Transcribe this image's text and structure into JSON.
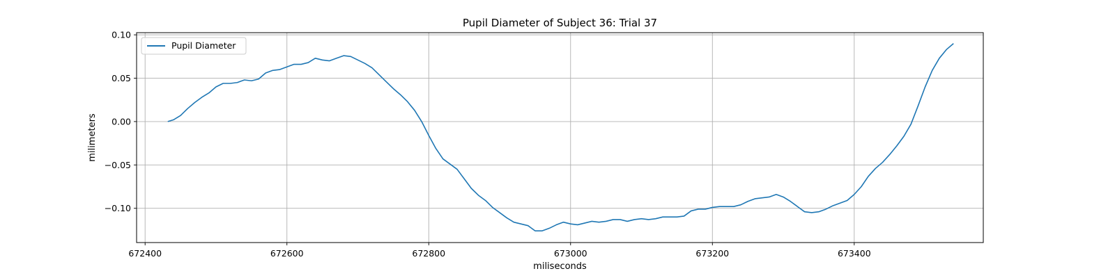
{
  "chart_data": {
    "type": "line",
    "title": "Pupil Diameter of Subject 36: Trial 37",
    "xlabel": "miliseconds",
    "ylabel": "milimeters",
    "xlim": [
      672388,
      673582
    ],
    "ylim": [
      -0.1395,
      0.1025
    ],
    "xticks": [
      672400,
      672600,
      672800,
      673000,
      673200,
      673400
    ],
    "xtick_labels": [
      "672400",
      "672600",
      "672800",
      "673000",
      "673200",
      "673400"
    ],
    "yticks": [
      -0.1,
      -0.05,
      0.0,
      0.05,
      0.1
    ],
    "ytick_labels": [
      "−0.10",
      "−0.05",
      "0.00",
      "0.05",
      "0.10"
    ],
    "grid": true,
    "legend_position": "upper-left",
    "series": [
      {
        "name": "Pupil Diameter",
        "color": "#1f77b4",
        "x": [
          672432,
          672440,
          672450,
          672460,
          672470,
          672480,
          672490,
          672500,
          672510,
          672520,
          672530,
          672540,
          672550,
          672560,
          672570,
          672580,
          672590,
          672600,
          672610,
          672620,
          672630,
          672640,
          672650,
          672660,
          672670,
          672680,
          672690,
          672700,
          672710,
          672720,
          672730,
          672740,
          672750,
          672760,
          672770,
          672780,
          672790,
          672800,
          672810,
          672820,
          672830,
          672840,
          672850,
          672860,
          672870,
          672880,
          672890,
          672900,
          672910,
          672920,
          672930,
          672940,
          672950,
          672960,
          672970,
          672980,
          672990,
          673000,
          673010,
          673020,
          673030,
          673040,
          673050,
          673060,
          673070,
          673080,
          673090,
          673100,
          673110,
          673120,
          673130,
          673140,
          673150,
          673160,
          673170,
          673180,
          673190,
          673200,
          673210,
          673220,
          673230,
          673240,
          673250,
          673260,
          673270,
          673280,
          673290,
          673300,
          673310,
          673320,
          673330,
          673340,
          673350,
          673360,
          673370,
          673380,
          673390,
          673400,
          673410,
          673420,
          673430,
          673440,
          673450,
          673460,
          673470,
          673480,
          673490,
          673500,
          673510,
          673520,
          673530,
          673540
        ],
        "y": [
          0.0,
          0.002,
          0.007,
          0.015,
          0.022,
          0.028,
          0.033,
          0.04,
          0.044,
          0.044,
          0.045,
          0.048,
          0.047,
          0.049,
          0.056,
          0.059,
          0.06,
          0.063,
          0.066,
          0.066,
          0.068,
          0.073,
          0.071,
          0.07,
          0.073,
          0.076,
          0.075,
          0.071,
          0.067,
          0.062,
          0.054,
          0.046,
          0.038,
          0.031,
          0.023,
          0.013,
          0.0,
          -0.016,
          -0.031,
          -0.043,
          -0.049,
          -0.055,
          -0.066,
          -0.077,
          -0.085,
          -0.091,
          -0.099,
          -0.105,
          -0.111,
          -0.116,
          -0.118,
          -0.12,
          -0.126,
          -0.126,
          -0.123,
          -0.119,
          -0.116,
          -0.118,
          -0.119,
          -0.117,
          -0.115,
          -0.116,
          -0.115,
          -0.113,
          -0.113,
          -0.115,
          -0.113,
          -0.112,
          -0.113,
          -0.112,
          -0.11,
          -0.11,
          -0.11,
          -0.109,
          -0.103,
          -0.101,
          -0.101,
          -0.099,
          -0.098,
          -0.098,
          -0.098,
          -0.096,
          -0.092,
          -0.089,
          -0.088,
          -0.087,
          -0.084,
          -0.087,
          -0.092,
          -0.098,
          -0.104,
          -0.105,
          -0.104,
          -0.101,
          -0.097,
          -0.094,
          -0.091,
          -0.084,
          -0.075,
          -0.063,
          -0.054,
          -0.047,
          -0.038,
          -0.028,
          -0.017,
          -0.003,
          0.018,
          0.04,
          0.059,
          0.073,
          0.083,
          0.09
        ]
      }
    ]
  }
}
